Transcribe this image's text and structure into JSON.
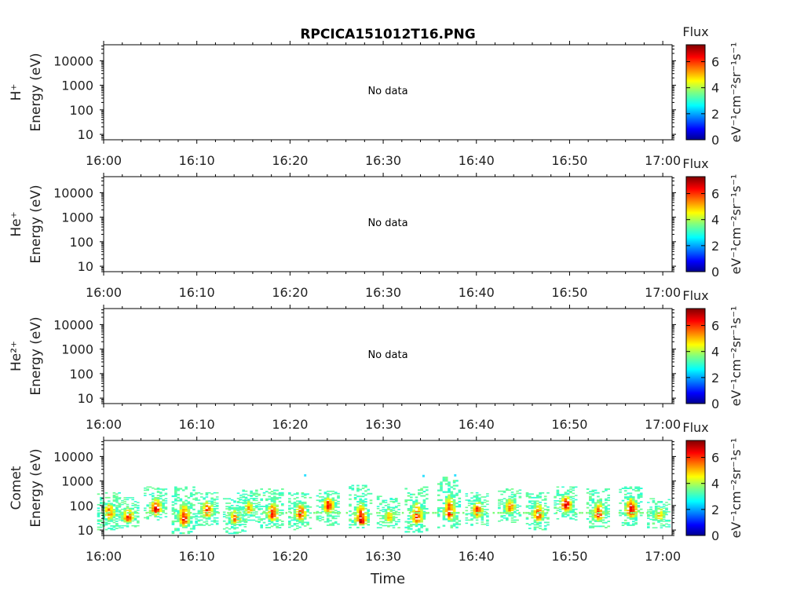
{
  "figure_title": "RPCICA151012T16.PNG",
  "colorbar": {
    "title": "Flux",
    "label": "eV⁻¹cm⁻²sr⁻¹s⁻¹",
    "ticks": [
      "0",
      "2",
      "4",
      "6"
    ],
    "range": [
      0,
      7.3
    ],
    "colormap": "jet"
  },
  "chart_data": [
    {
      "type": "heatmap",
      "panel": "H+",
      "species_label": "H⁺",
      "ylabel": "Energy (eV)",
      "yscale": "log",
      "ylim": [
        6,
        45000
      ],
      "yticks": [
        "10",
        "100",
        "1000",
        "10000"
      ],
      "xlim": [
        "16:00",
        "17:01"
      ],
      "xticks": [
        "16:00",
        "16:10",
        "16:20",
        "16:30",
        "16:40",
        "16:50",
        "17:00"
      ],
      "message": "No data",
      "values": []
    },
    {
      "type": "heatmap",
      "panel": "He+",
      "species_label": "He⁺",
      "ylabel": "Energy (eV)",
      "yscale": "log",
      "ylim": [
        6,
        45000
      ],
      "yticks": [
        "10",
        "100",
        "1000",
        "10000"
      ],
      "xlim": [
        "16:00",
        "17:01"
      ],
      "xticks": [
        "16:00",
        "16:10",
        "16:20",
        "16:30",
        "16:40",
        "16:50",
        "17:00"
      ],
      "message": "No data",
      "values": []
    },
    {
      "type": "heatmap",
      "panel": "He2+",
      "species_label": "He²⁺",
      "ylabel": "Energy (eV)",
      "yscale": "log",
      "ylim": [
        6,
        45000
      ],
      "yticks": [
        "10",
        "100",
        "1000",
        "10000"
      ],
      "xlim": [
        "16:00",
        "17:01"
      ],
      "xticks": [
        "16:00",
        "16:10",
        "16:20",
        "16:30",
        "16:40",
        "16:50",
        "17:00"
      ],
      "message": "No data",
      "values": []
    },
    {
      "type": "heatmap",
      "panel": "Comet",
      "species_label": "Comet",
      "ylabel": "Energy (eV)",
      "xlabel": "Time",
      "yscale": "log",
      "ylim": [
        6,
        45000
      ],
      "yticks": [
        "10",
        "100",
        "1000",
        "10000"
      ],
      "xlim": [
        "16:00",
        "17:01"
      ],
      "xticks": [
        "16:00",
        "16:10",
        "16:20",
        "16:30",
        "16:40",
        "16:50",
        "17:00"
      ],
      "bursts": [
        {
          "t": "16:00.5",
          "emin": 10,
          "emax": 350,
          "peak": 50,
          "fmax": 6.0
        },
        {
          "t": "16:02.5",
          "emin": 12,
          "emax": 220,
          "peak": 30,
          "fmax": 6.5
        },
        {
          "t": "16:05.5",
          "emin": 25,
          "emax": 600,
          "peak": 60,
          "fmax": 7.0
        },
        {
          "t": "16:08.5",
          "emin": 7,
          "emax": 600,
          "peak": 25,
          "fmax": 6.5
        },
        {
          "t": "16:11.0",
          "emin": 15,
          "emax": 350,
          "peak": 60,
          "fmax": 6.5
        },
        {
          "t": "16:14.0",
          "emin": 7,
          "emax": 200,
          "peak": 30,
          "fmax": 6.0
        },
        {
          "t": "16:15.5",
          "emin": 20,
          "emax": 450,
          "peak": 70,
          "fmax": 5.5
        },
        {
          "t": "16:18.0",
          "emin": 12,
          "emax": 500,
          "peak": 40,
          "fmax": 6.5
        },
        {
          "t": "16:21.0",
          "emin": 10,
          "emax": 350,
          "peak": 45,
          "fmax": 6.5
        },
        {
          "t": "16:24.0",
          "emin": 15,
          "emax": 450,
          "peak": 100,
          "fmax": 6.5
        },
        {
          "t": "16:27.5",
          "emin": 12,
          "emax": 700,
          "peak": 20,
          "fmax": 7.0
        },
        {
          "t": "16:30.5",
          "emin": 12,
          "emax": 250,
          "peak": 30,
          "fmax": 5.5
        },
        {
          "t": "16:33.5",
          "emin": 8,
          "emax": 600,
          "peak": 30,
          "fmax": 6.5
        },
        {
          "t": "16:37.0",
          "emin": 12,
          "emax": 1500,
          "peak": 45,
          "fmax": 6.5
        },
        {
          "t": "16:40.0",
          "emin": 15,
          "emax": 350,
          "peak": 60,
          "fmax": 6.5
        },
        {
          "t": "16:43.5",
          "emin": 20,
          "emax": 500,
          "peak": 80,
          "fmax": 6.0
        },
        {
          "t": "16:46.5",
          "emin": 10,
          "emax": 350,
          "peak": 40,
          "fmax": 6.5
        },
        {
          "t": "16:49.5",
          "emin": 25,
          "emax": 600,
          "peak": 100,
          "fmax": 7.0
        },
        {
          "t": "16:53.0",
          "emin": 12,
          "emax": 500,
          "peak": 40,
          "fmax": 6.5
        },
        {
          "t": "16:56.5",
          "emin": 15,
          "emax": 600,
          "peak": 60,
          "fmax": 7.0
        },
        {
          "t": "16:59.5",
          "emin": 12,
          "emax": 200,
          "peak": 40,
          "fmax": 5.5
        }
      ],
      "scattered_high_energy_points": [
        {
          "t": "16:21.5",
          "e": 1700
        },
        {
          "t": "16:34.2",
          "e": 1600
        },
        {
          "t": "16:37.6",
          "e": 1700
        }
      ]
    }
  ]
}
